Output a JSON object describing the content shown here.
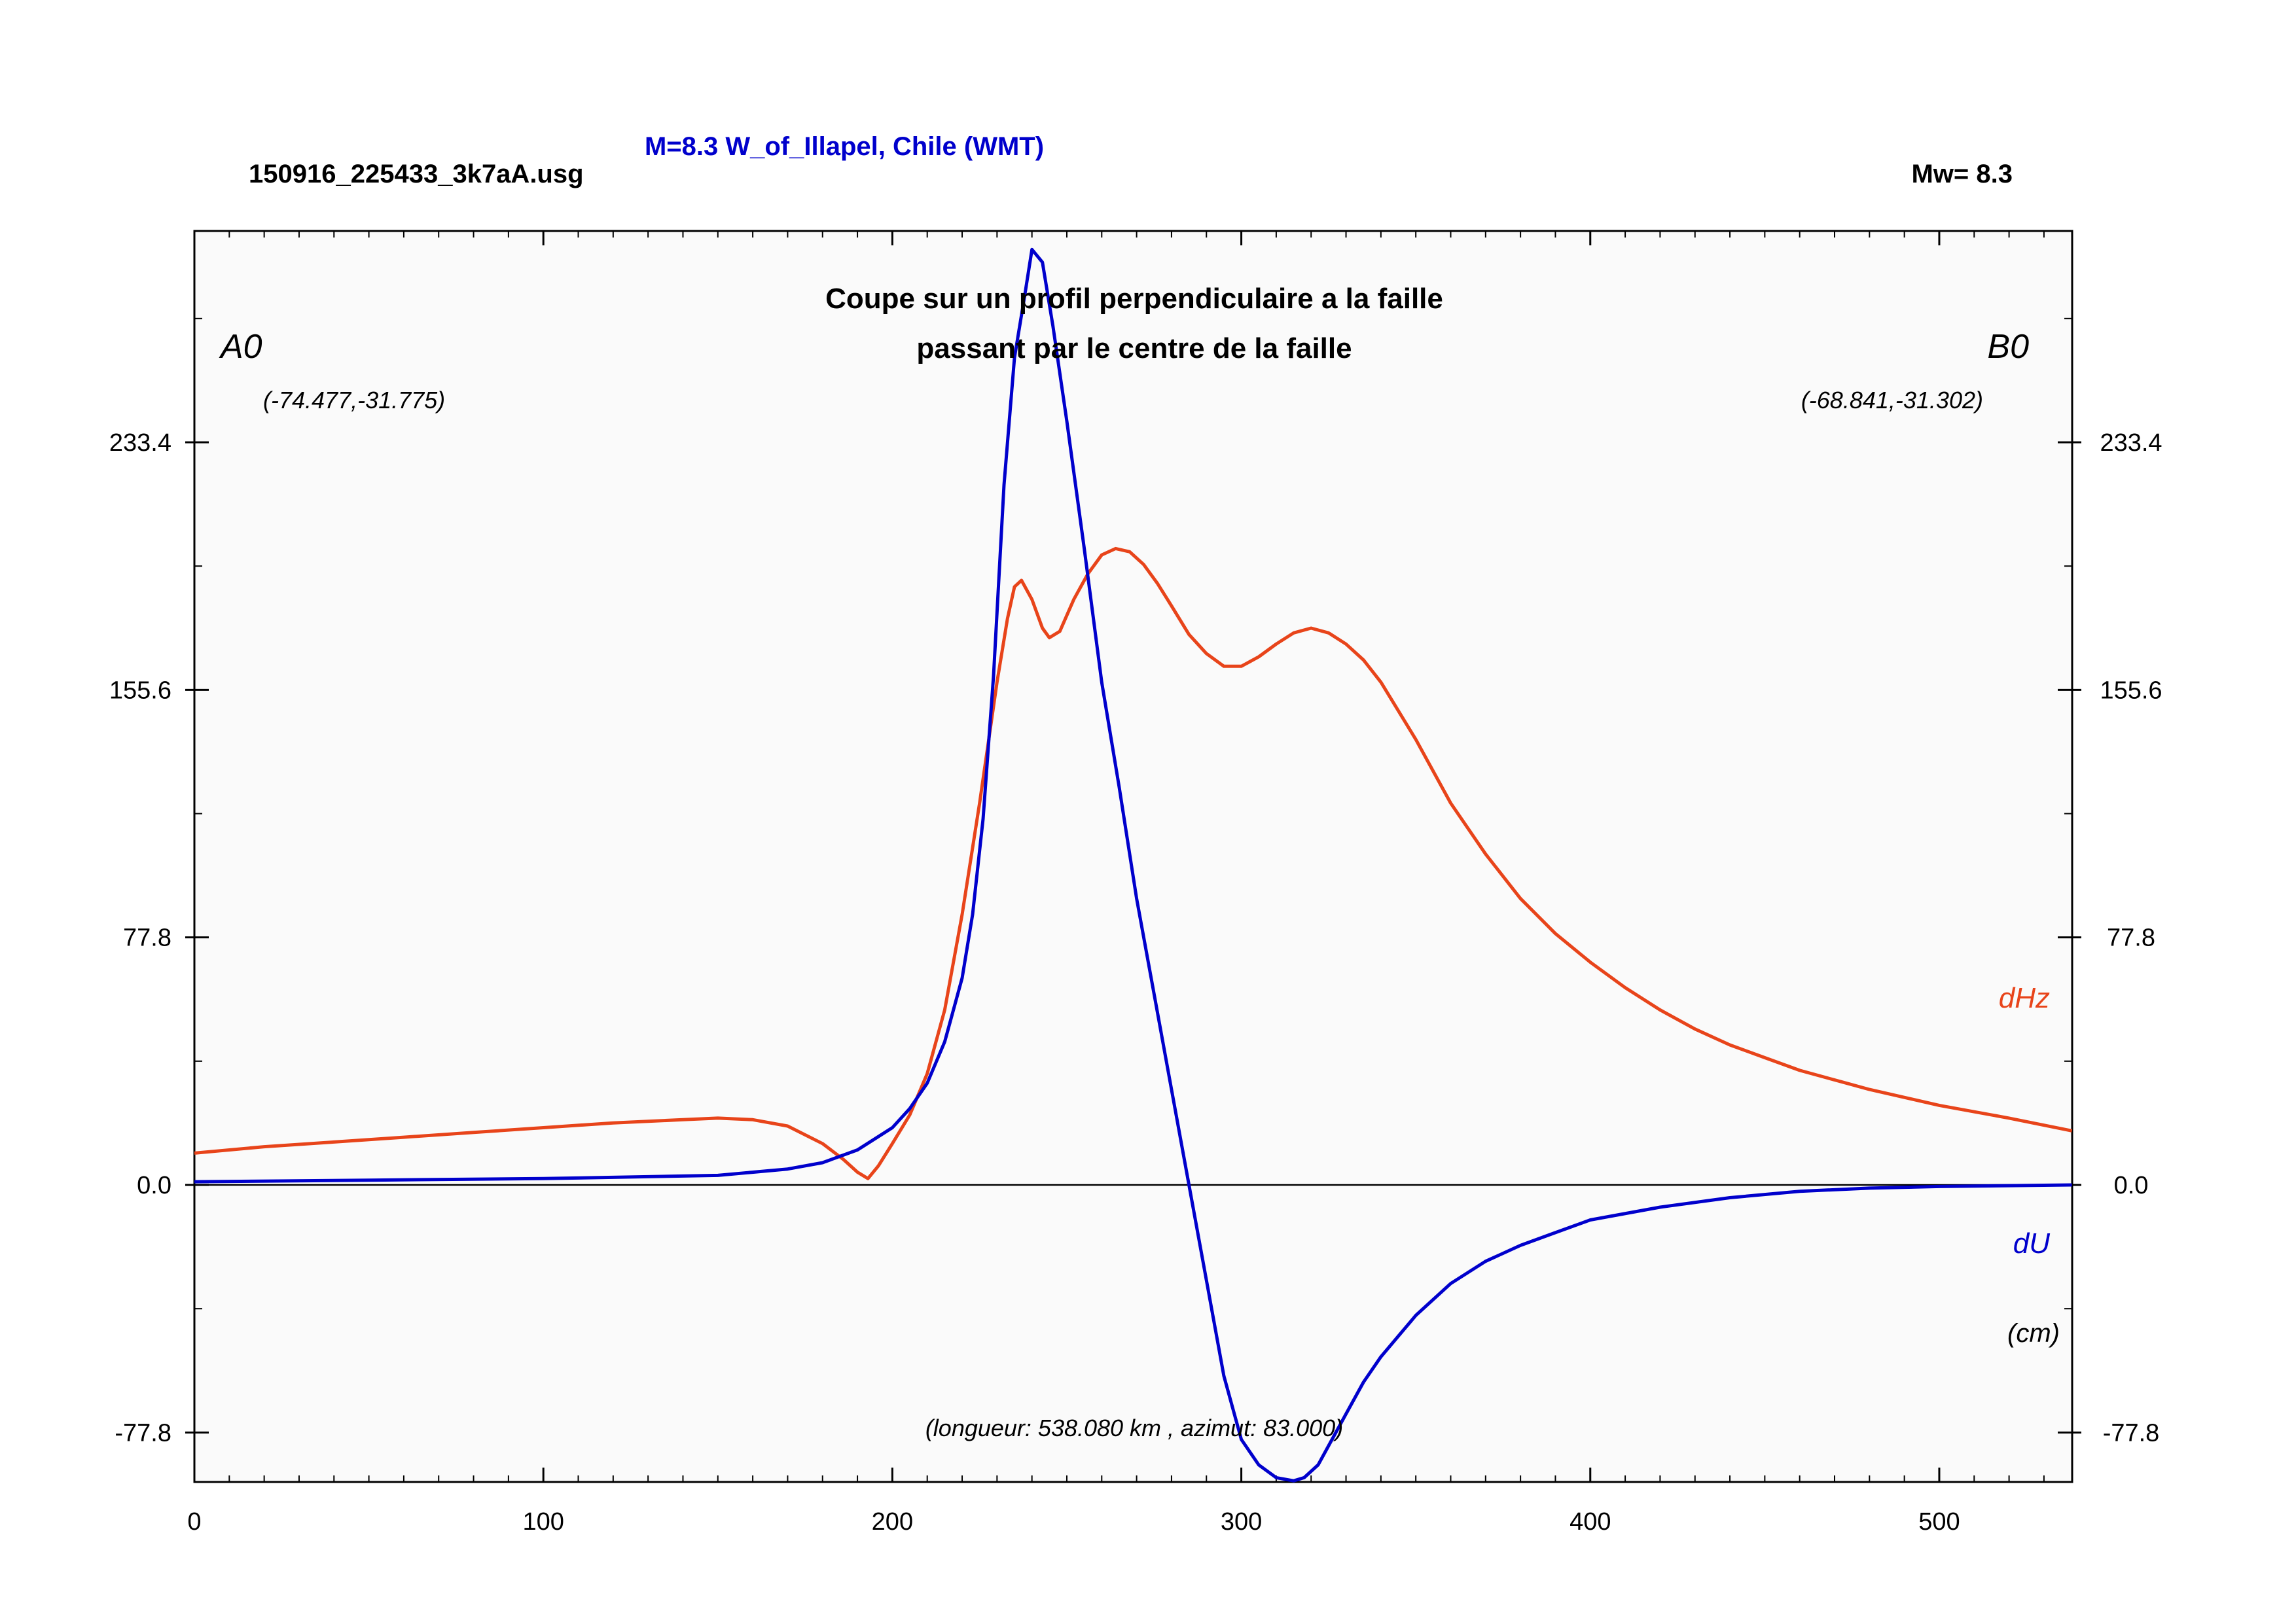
{
  "header": {
    "file_name": "150916_225433_3k7aA.usg",
    "title": "M=8.3 W_of_Illapel, Chile (WMT)",
    "magnitude": "Mw= 8.3"
  },
  "chart_data": {
    "type": "line",
    "subtitle_lines": [
      "Coupe sur un profil perpendiculaire a la faille",
      "passant par le centre de la faille"
    ],
    "endpoint_a": {
      "label": "A0",
      "coords": "(-74.477,-31.775)"
    },
    "endpoint_b": {
      "label": "B0",
      "coords": "(-68.841,-31.302)"
    },
    "unit_label": "(cm)",
    "profile_note": "(longueur: 538.080 km , azimut: 83.000)",
    "xlim": [
      0,
      538.08
    ],
    "ylim": [
      -95,
      300
    ],
    "x_ticks": [
      0,
      100,
      200,
      300,
      400,
      500
    ],
    "y_ticks": [
      "233.4",
      "155.6",
      "77.8",
      "0.0",
      "-77.8"
    ],
    "y_tick_values": [
      233.4,
      155.6,
      77.8,
      0.0,
      -77.8
    ],
    "grid": false,
    "series": [
      {
        "name": "dHz",
        "color": "#e8441a",
        "x": [
          0,
          20,
          40,
          60,
          80,
          100,
          120,
          140,
          150,
          160,
          170,
          180,
          186,
          190,
          193,
          196,
          200,
          205,
          210,
          215,
          220,
          225,
          230,
          233,
          235,
          237,
          240,
          243,
          245,
          248,
          252,
          256,
          260,
          264,
          268,
          272,
          276,
          280,
          285,
          290,
          295,
          300,
          305,
          310,
          315,
          320,
          325,
          330,
          335,
          340,
          350,
          360,
          370,
          380,
          390,
          400,
          410,
          420,
          430,
          440,
          450,
          460,
          480,
          500,
          520,
          538
        ],
        "y": [
          10,
          12,
          13.5,
          15,
          16.5,
          18,
          19.5,
          20.5,
          21,
          20.5,
          18.5,
          13,
          8,
          4,
          2,
          6,
          13,
          22,
          35,
          55,
          85,
          120,
          158,
          178,
          188,
          190,
          184,
          175,
          172,
          174,
          184,
          192,
          198,
          200,
          199,
          195,
          189,
          182,
          173,
          167,
          163,
          163,
          166,
          170,
          173.5,
          175,
          173.5,
          170,
          165,
          158,
          140,
          120,
          104,
          90,
          79,
          70,
          62,
          55,
          49,
          44,
          40,
          36,
          30,
          25,
          21,
          17
        ]
      },
      {
        "name": "dU",
        "color": "#0000cc",
        "x": [
          0,
          50,
          100,
          150,
          170,
          180,
          190,
          200,
          205,
          210,
          215,
          220,
          223,
          226,
          229,
          232,
          235,
          238,
          240,
          243,
          246,
          250,
          255,
          260,
          265,
          270,
          275,
          280,
          285,
          290,
          295,
          300,
          305,
          310,
          315,
          318,
          322,
          326,
          330,
          335,
          340,
          350,
          360,
          370,
          380,
          390,
          400,
          420,
          440,
          460,
          480,
          500,
          538
        ],
        "y": [
          1,
          1.5,
          2,
          3,
          5,
          7,
          11,
          18,
          24,
          32,
          45,
          65,
          85,
          115,
          160,
          220,
          260,
          280,
          294,
          290,
          270,
          240,
          200,
          158,
          125,
          90,
          60,
          30,
          0,
          -30,
          -60,
          -80,
          -88,
          -92,
          -93,
          -92,
          -88,
          -80,
          -72,
          -62,
          -54,
          -41,
          -31,
          -24,
          -19,
          -15,
          -11,
          -7,
          -4,
          -2,
          -1,
          -0.5,
          0
        ]
      }
    ]
  }
}
